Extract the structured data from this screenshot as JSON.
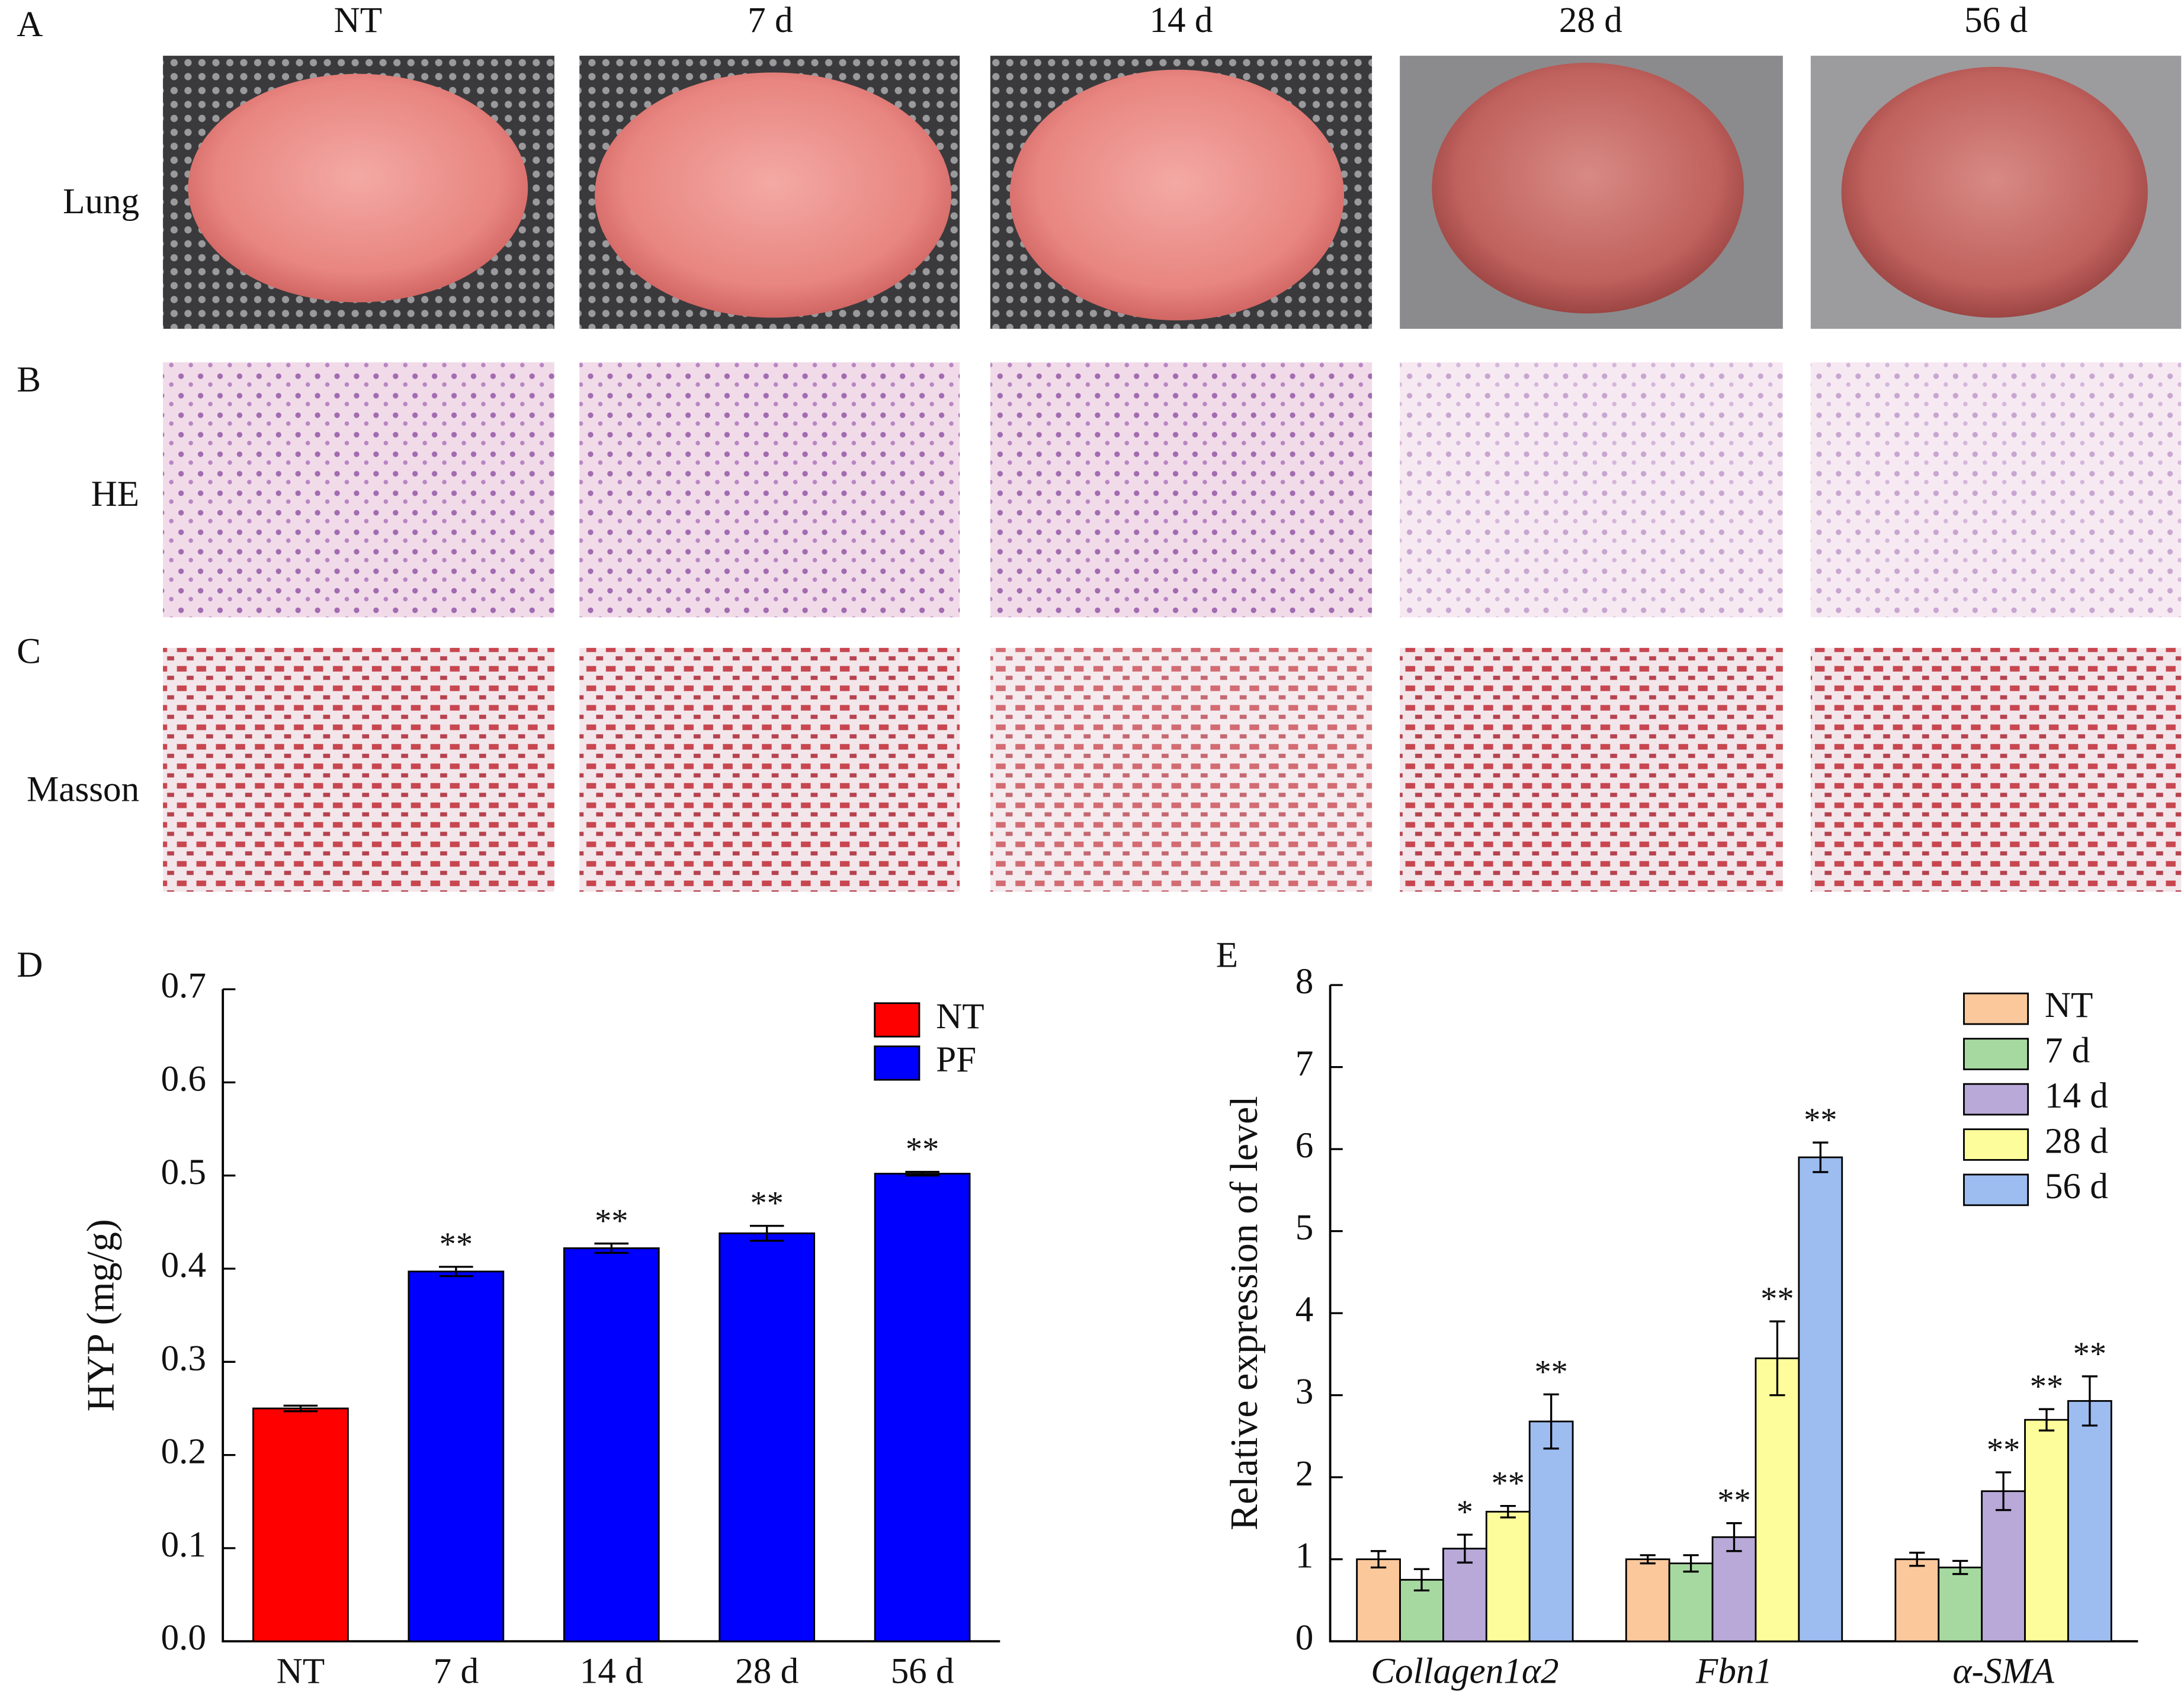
{
  "figure": {
    "panel_labels": [
      "A",
      "B",
      "C",
      "D",
      "E"
    ],
    "columns": [
      "NT",
      "7 d",
      "14 d",
      "28 d",
      "56 d"
    ],
    "rows": [
      "Lung",
      "HE",
      "Masson"
    ]
  },
  "chart_data": [
    {
      "type": "bar",
      "ylabel": "HYP (mg/g)",
      "categories": [
        "NT",
        "7 d",
        "14 d",
        "28 d",
        "56 d"
      ],
      "series": [
        {
          "name": "NT",
          "color": "#ff0000",
          "values": [
            0.25,
            null,
            null,
            null,
            null
          ],
          "errors": [
            0.003,
            null,
            null,
            null,
            null
          ]
        },
        {
          "name": "PF",
          "color": "#0000ff",
          "values": [
            null,
            0.397,
            0.422,
            0.438,
            0.502
          ],
          "errors": [
            null,
            0.005,
            0.005,
            0.008,
            0.002
          ],
          "significance": [
            null,
            "**",
            "**",
            "**",
            "**"
          ]
        }
      ],
      "ylim": [
        0,
        0.7
      ],
      "yticks": [
        {
          "value": 0,
          "label": "0.0"
        },
        0.1,
        0.2,
        0.3,
        0.4,
        0.5,
        0.6,
        0.7
      ],
      "legend": "upper right"
    },
    {
      "type": "grouped_bar",
      "ylabel": "Relative expression of level",
      "categories": [
        "Collagen1α2",
        "Fbn1",
        "α-SMA"
      ],
      "series": [
        {
          "name": "NT",
          "color": "#fbc89c",
          "values": [
            1.0,
            1.0,
            1.0
          ],
          "errors": [
            0.1,
            0.05,
            0.08
          ]
        },
        {
          "name": "7 d",
          "color": "#a6d9a0",
          "values": [
            0.75,
            0.95,
            0.9
          ],
          "errors": [
            0.13,
            0.1,
            0.08
          ]
        },
        {
          "name": "14 d",
          "color": "#b8a9d8",
          "values": [
            1.13,
            1.27,
            1.83
          ],
          "errors": [
            0.17,
            0.17,
            0.23
          ],
          "significance": [
            "*",
            "**",
            "**"
          ]
        },
        {
          "name": "28 d",
          "color": "#fdfd9b",
          "values": [
            1.58,
            3.45,
            2.7
          ],
          "errors": [
            0.07,
            0.45,
            0.13
          ],
          "significance": [
            "**",
            "**",
            "**"
          ]
        },
        {
          "name": "56 d",
          "color": "#9dbdf0",
          "values": [
            2.68,
            5.9,
            2.93
          ],
          "errors": [
            0.33,
            0.18,
            0.3
          ],
          "significance": [
            "**",
            "**",
            "**"
          ]
        }
      ],
      "ylim": [
        0,
        8
      ],
      "yticks": [
        0,
        1,
        2,
        3,
        4,
        5,
        6,
        7,
        8
      ],
      "legend": "upper right"
    }
  ]
}
